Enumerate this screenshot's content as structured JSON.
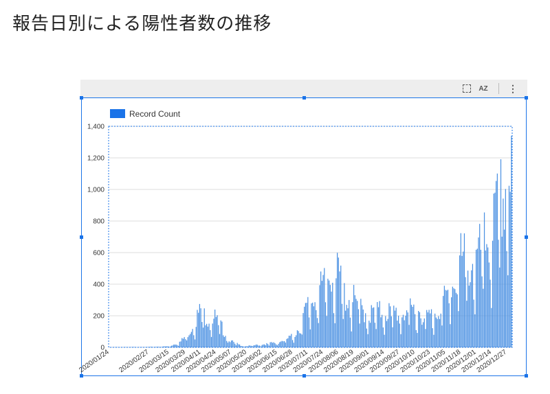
{
  "page": {
    "title": "報告日別による陽性者数の推移"
  },
  "toolbar": {
    "icons": [
      "select-area-icon",
      "sort-az-icon",
      "more-vert-icon"
    ],
    "sort_label": "AZ",
    "more_label": "⋮"
  },
  "colors": {
    "bar": "#4a90e2",
    "legend": "#1a73e8",
    "frame": "#1a73e8",
    "grid": "#dddddd"
  },
  "chart_data": {
    "type": "bar",
    "title": "",
    "xlabel": "",
    "ylabel": "",
    "ylim": [
      0,
      1400
    ],
    "yticks": [
      0,
      200,
      400,
      600,
      800,
      1000,
      1200,
      1400
    ],
    "ytick_labels": [
      "0",
      "200",
      "400",
      "600",
      "800",
      "1,000",
      "1,200",
      "1,400"
    ],
    "grid": true,
    "legend_position": "top-left",
    "series": [
      {
        "name": "Record Count"
      }
    ],
    "x_tick_labels": [
      "2020/01/24",
      "2020/02/27",
      "2020/03/15",
      "2020/03/29",
      "2020/04/11",
      "2020/04/24",
      "2020/05/07",
      "2020/05/20",
      "2020/06/02",
      "2020/06/15",
      "2020/06/28",
      "2020/07/11",
      "2020/07/24",
      "2020/08/06",
      "2020/08/19",
      "2020/09/01",
      "2020/09/14",
      "2020/09/27",
      "2020/10/10",
      "2020/10/23",
      "2020/11/05",
      "2020/11/18",
      "2020/12/01",
      "2020/12/14",
      "2020/12/27"
    ],
    "x_start_date": "2020/01/24",
    "x_end_date": "2020/12/31",
    "trend_points": [
      [
        "2020/01/24",
        1
      ],
      [
        "2020/02/27",
        2
      ],
      [
        "2020/03/15",
        5
      ],
      [
        "2020/03/25",
        30
      ],
      [
        "2020/04/01",
        80
      ],
      [
        "2020/04/06",
        140
      ],
      [
        "2020/04/11",
        190
      ],
      [
        "2020/04/17",
        160
      ],
      [
        "2020/04/24",
        150
      ],
      [
        "2020/04/30",
        90
      ],
      [
        "2020/05/07",
        30
      ],
      [
        "2020/05/14",
        12
      ],
      [
        "2020/05/20",
        6
      ],
      [
        "2020/06/02",
        15
      ],
      [
        "2020/06/15",
        25
      ],
      [
        "2020/06/28",
        55
      ],
      [
        "2020/07/04",
        110
      ],
      [
        "2020/07/11",
        210
      ],
      [
        "2020/07/17",
        270
      ],
      [
        "2020/07/24",
        300
      ],
      [
        "2020/07/31",
        420
      ],
      [
        "2020/08/03",
        330
      ],
      [
        "2020/08/06",
        380
      ],
      [
        "2020/08/10",
        280
      ],
      [
        "2020/08/19",
        240
      ],
      [
        "2020/09/01",
        170
      ],
      [
        "2020/09/14",
        190
      ],
      [
        "2020/09/27",
        180
      ],
      [
        "2020/10/10",
        200
      ],
      [
        "2020/10/23",
        160
      ],
      [
        "2020/11/05",
        250
      ],
      [
        "2020/11/12",
        340
      ],
      [
        "2020/11/18",
        450
      ],
      [
        "2020/12/01",
        440
      ],
      [
        "2020/12/14",
        600
      ],
      [
        "2020/12/20",
        700
      ],
      [
        "2020/12/27",
        850
      ],
      [
        "2020/12/30",
        900
      ]
    ],
    "final_value": 1340
  }
}
